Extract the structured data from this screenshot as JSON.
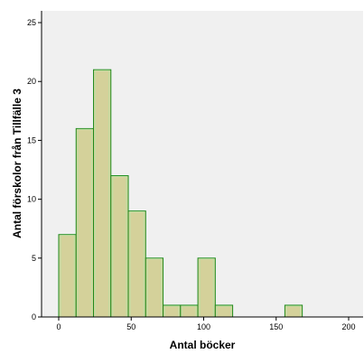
{
  "chart_data": {
    "type": "bar",
    "subtype": "histogram",
    "title": "",
    "xlabel": "Antal böcker",
    "ylabel": "Antal förskolor från Tillfälle 3",
    "xlim": [
      -10,
      205
    ],
    "ylim": [
      0,
      26
    ],
    "xticks": [
      0,
      50,
      100,
      150,
      200
    ],
    "yticks": [
      0,
      5,
      10,
      15,
      20,
      25
    ],
    "bin_width": 12,
    "bins": [
      {
        "start": 0,
        "end": 12,
        "value": 7
      },
      {
        "start": 12,
        "end": 24,
        "value": 16
      },
      {
        "start": 24,
        "end": 36,
        "value": 21
      },
      {
        "start": 36,
        "end": 48,
        "value": 12
      },
      {
        "start": 48,
        "end": 60,
        "value": 9
      },
      {
        "start": 60,
        "end": 72,
        "value": 5
      },
      {
        "start": 72,
        "end": 84,
        "value": 1
      },
      {
        "start": 84,
        "end": 96,
        "value": 1
      },
      {
        "start": 96,
        "end": 108,
        "value": 5
      },
      {
        "start": 108,
        "end": 120,
        "value": 1
      },
      {
        "start": 156,
        "end": 168,
        "value": 1
      }
    ],
    "grid": false,
    "legend": "none",
    "colors": {
      "bar_fill": "#d4d19a",
      "bar_stroke": "#1e8c1e",
      "bar_inner": "#bfe0a4",
      "plot_background": "#f0f0f0",
      "axis": "#000000"
    }
  }
}
